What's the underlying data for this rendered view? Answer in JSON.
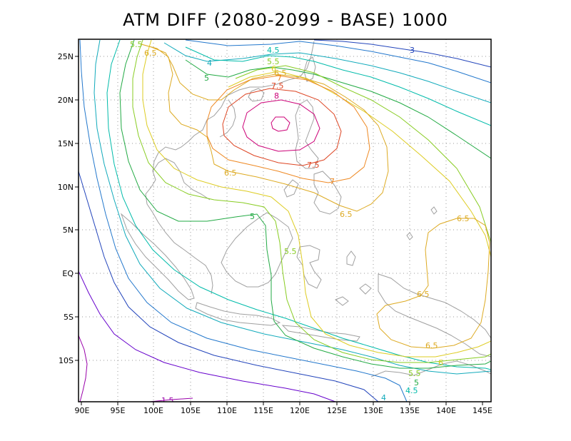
{
  "title": "ATM DIFF (2080-2099 - BASE) 1000",
  "x_ticks": [
    "90E",
    "95E",
    "100E",
    "105E",
    "110E",
    "115E",
    "120E",
    "125E",
    "130E",
    "135E",
    "140E",
    "145E"
  ],
  "y_ticks": [
    "25N",
    "20N",
    "15N",
    "10N",
    "5N",
    "EQ",
    "5S",
    "10S"
  ],
  "colors": {
    "c1_5": "#9900aa",
    "c2": "#6600cc",
    "c3": "#2244bb",
    "c3_5": "#2277cc",
    "c4": "#11aabb",
    "c4_5": "#00bbaa",
    "c5": "#22aa44",
    "c5_5": "#88cc22",
    "c6": "#ddcc22",
    "c6_5": "#ddaa22",
    "c7": "#ee8822",
    "c7_5": "#dd4422",
    "c8": "#cc0077",
    "coast": "#a0a0a0",
    "grid": "#999999"
  },
  "contour_labels": {
    "l1_5": "1.5",
    "l3": "3",
    "l4": "4",
    "l4_5a": "4.5",
    "l4_5b": "4.5",
    "l5a": "5",
    "l5b": "5",
    "l5c": "5",
    "l5_5a": "5.5",
    "l5_5b": "5.5",
    "l5_5c": "5.5",
    "l5_5d": "5.5",
    "l6a": "6",
    "l6b": "6",
    "l6_5a": "6.5",
    "l6_5b": "6.5",
    "l6_5c": "6.5",
    "l6_5d": "6.5",
    "l6_5e": "6.5",
    "l6_5f": "6.5",
    "l6_5g": "6.5",
    "l7a": "7",
    "l7b": "7",
    "l7_5a": "7.5",
    "l7_5b": "7.5",
    "l8": "8"
  }
}
